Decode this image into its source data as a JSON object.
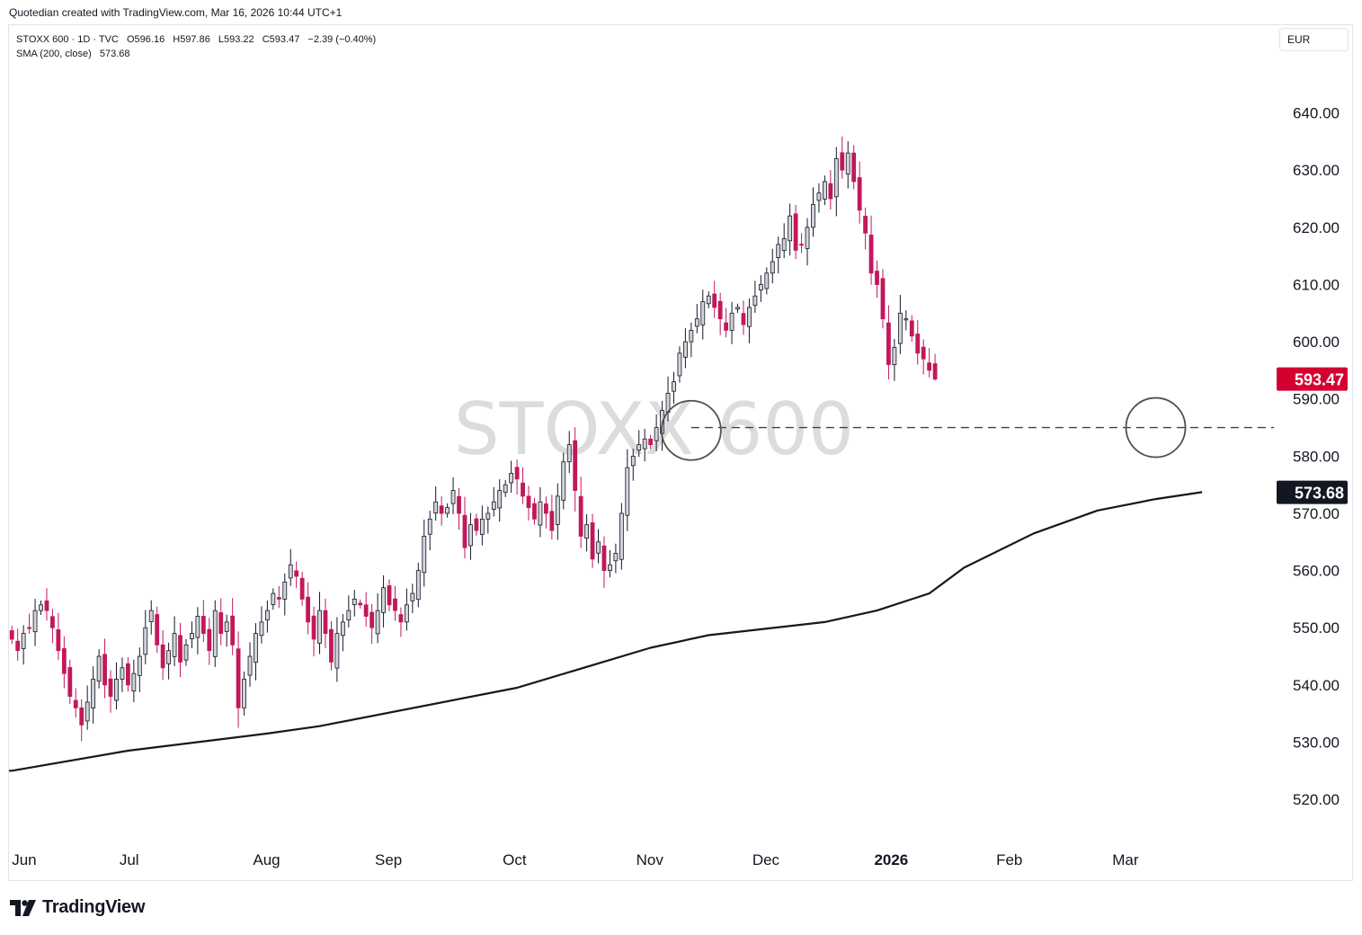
{
  "header": {
    "credit": "Quotedian created with TradingView.com, Mar 16, 2026 10:44 UTC+1"
  },
  "legend": {
    "line1": [
      "STOXX 600 · 1D · TVC",
      "O596.16",
      "H597.86",
      "L593.22",
      "C593.47",
      "−2.39 (−0.40%)"
    ],
    "line2": [
      "SMA (200, close)",
      "573.68"
    ]
  },
  "currency": "EUR",
  "brand": "TradingView",
  "colors": {
    "up_fill": "#d1d4dc",
    "up_border": "#131722",
    "down_fill": "#c2185b",
    "down_border": "#c2185b",
    "sma": "#131722",
    "last_price_bg": "#d50032",
    "sma_label_bg": "#131722",
    "watermark": "#dcdcdc"
  },
  "chart_data": {
    "type": "candlestick",
    "title": "STOXX 600",
    "watermark": "STOXX 600",
    "ylim": [
      512,
      650
    ],
    "y_ticks": [
      520,
      530,
      540,
      550,
      560,
      570,
      580,
      590,
      600,
      610,
      620,
      630,
      640
    ],
    "y_tick_labels": [
      "520.00",
      "530.00",
      "540.00",
      "550.00",
      "560.00",
      "570.00",
      "580.00",
      "590.00",
      "600.00",
      "610.00",
      "620.00",
      "630.00",
      "640.00"
    ],
    "x_labels": [
      {
        "label": "Jun",
        "bar": 0,
        "bold": false
      },
      {
        "label": "Jul",
        "bar": 21,
        "bold": false
      },
      {
        "label": "Aug",
        "bar": 44,
        "bold": false
      },
      {
        "label": "Sep",
        "bar": 65,
        "bold": false
      },
      {
        "label": "Oct",
        "bar": 87,
        "bold": false
      },
      {
        "label": "Nov",
        "bar": 110,
        "bold": false
      },
      {
        "label": "Dec",
        "bar": 130,
        "bold": false
      },
      {
        "label": "2026",
        "bar": 151,
        "bold": true
      },
      {
        "label": "Feb",
        "bar": 172,
        "bold": false
      },
      {
        "label": "Mar",
        "bar": 192,
        "bold": false
      }
    ],
    "total_slots": 216,
    "last_price": 593.47,
    "last_price_label": "593.47",
    "sma_value": 573.68,
    "sma_label": "573.68",
    "support_level": 585,
    "support_start_bar": 117,
    "highlight_circles": [
      {
        "bar": 117,
        "price": 584.5
      },
      {
        "bar": 197,
        "price": 585.0
      }
    ],
    "sma_series": [
      [
        0,
        525.0
      ],
      [
        20,
        528.5
      ],
      [
        44,
        531.5
      ],
      [
        53,
        532.8
      ],
      [
        87,
        539.5
      ],
      [
        110,
        546.5
      ],
      [
        120,
        548.7
      ],
      [
        140,
        551.0
      ],
      [
        149,
        553.0
      ],
      [
        158,
        556.0
      ],
      [
        164,
        560.5
      ],
      [
        176,
        566.5
      ],
      [
        187,
        570.5
      ],
      [
        197,
        572.5
      ],
      [
        205,
        573.7
      ]
    ],
    "closes": [
      548,
      546,
      549,
      550,
      553,
      554,
      553,
      550,
      546,
      542,
      538,
      536,
      533,
      537,
      541,
      545,
      540,
      538,
      541,
      543,
      540,
      542,
      545,
      550,
      553,
      547,
      543,
      546,
      549,
      544,
      547,
      549,
      552,
      549,
      546,
      553,
      549,
      551,
      547,
      536,
      541,
      545,
      549,
      551,
      553,
      556,
      555,
      558,
      561,
      559,
      555,
      551,
      548,
      553,
      549,
      544,
      549,
      551,
      553,
      555,
      554,
      552,
      550,
      553,
      557,
      554,
      553,
      551,
      554,
      556,
      560,
      566,
      569,
      572,
      570,
      571,
      574,
      570,
      564,
      568,
      567,
      569,
      570,
      572,
      574,
      575,
      577,
      576,
      573,
      571,
      569,
      572,
      570,
      567,
      573,
      579,
      582,
      574,
      566,
      568,
      562,
      565,
      560,
      561,
      563,
      570,
      578,
      580,
      582,
      583,
      582,
      585,
      588,
      591,
      593,
      598,
      600,
      602,
      604,
      607,
      608,
      606,
      604,
      602,
      605,
      606,
      603,
      606,
      608,
      610,
      612,
      614,
      617,
      618,
      622,
      616,
      617,
      620,
      624,
      626,
      628,
      625,
      632,
      630,
      633,
      628,
      623,
      619,
      612,
      610,
      604,
      596,
      599,
      605,
      604,
      601,
      598,
      597,
      595,
      593.47
    ],
    "last_bar_ohlc": {
      "open": 596.16,
      "high": 597.86,
      "low": 593.22,
      "close": 593.47
    }
  }
}
